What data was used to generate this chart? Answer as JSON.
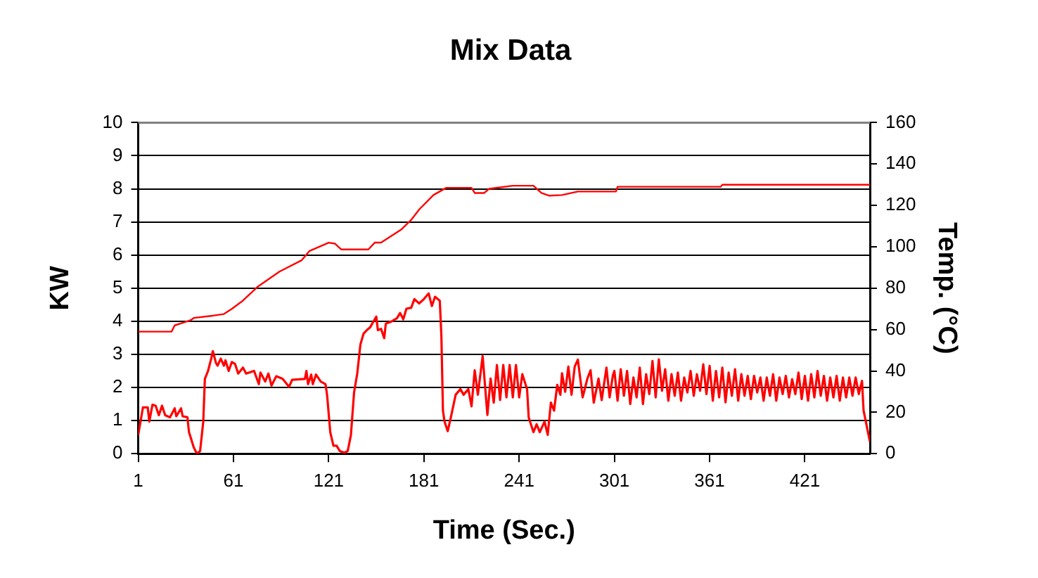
{
  "chart_data": {
    "type": "line",
    "title": "Mix Data",
    "xlabel": "Time (Sec.)",
    "ylabel": "KW",
    "y2label": "Temp. (°C)",
    "xlim": [
      1,
      462
    ],
    "xticks": [
      1,
      61,
      121,
      181,
      241,
      301,
      361,
      421
    ],
    "ylim": [
      0,
      10
    ],
    "yticks": [
      0,
      1,
      2,
      3,
      4,
      5,
      6,
      7,
      8,
      9,
      10
    ],
    "y2lim": [
      0,
      160
    ],
    "y2ticks": [
      0,
      20,
      40,
      60,
      80,
      100,
      120,
      140,
      160
    ],
    "grid": "y",
    "legend": false,
    "marker": "none",
    "line_style": "solid",
    "series": [
      {
        "color": "#ff0000",
        "axis": "y",
        "x": [
          1,
          4,
          7,
          8,
          10,
          12,
          14,
          16,
          18,
          21,
          24,
          25,
          28,
          29,
          32,
          33,
          36,
          38,
          40,
          42,
          43,
          45,
          47,
          48,
          50,
          51,
          53,
          55,
          56,
          58,
          60,
          62,
          64,
          67,
          69,
          74,
          77,
          78,
          81,
          83,
          85,
          88,
          92,
          96,
          98,
          106,
          107,
          108,
          110,
          111,
          113,
          116,
          119,
          120,
          122,
          124,
          126,
          128,
          131,
          133,
          135,
          137,
          139,
          141,
          143,
          145,
          147,
          151,
          152,
          154,
          156,
          157,
          160,
          164,
          166,
          168,
          170,
          173,
          175,
          178,
          181,
          184,
          186,
          188,
          191,
          192,
          193,
          194,
          196,
          198,
          201,
          204,
          206,
          209,
          211,
          213,
          215,
          218,
          221,
          223,
          225,
          227,
          229,
          231,
          233,
          235,
          237,
          239,
          241,
          243,
          246,
          247,
          250,
          252,
          254,
          257,
          259,
          261,
          263,
          265,
          267,
          268,
          270,
          272,
          274,
          276,
          278,
          281,
          284,
          286,
          288,
          291,
          293,
          296,
          298,
          300,
          301,
          303,
          305,
          307,
          309,
          311,
          313,
          315,
          317,
          319,
          321,
          323,
          325,
          327,
          329,
          331,
          333,
          335,
          337,
          339,
          341,
          343,
          345,
          347,
          349,
          351,
          353,
          355,
          357,
          359,
          361,
          363,
          365,
          367,
          369,
          371,
          373,
          375,
          377,
          379,
          381,
          383,
          385,
          387,
          389,
          391,
          393,
          395,
          397,
          399,
          401,
          403,
          405,
          407,
          409,
          411,
          413,
          415,
          417,
          419,
          421,
          423,
          425,
          427,
          429,
          431,
          433,
          435,
          437,
          439,
          441,
          443,
          445,
          447,
          449,
          451,
          453,
          455,
          457,
          458,
          462
        ],
        "values": [
          0.56,
          1.4,
          1.4,
          0.97,
          1.48,
          1.45,
          1.16,
          1.45,
          1.16,
          1.1,
          1.37,
          1.13,
          1.37,
          1.13,
          1.1,
          0.65,
          0.19,
          0,
          0.08,
          0.97,
          2.26,
          2.5,
          2.87,
          3.1,
          2.74,
          2.66,
          2.87,
          2.66,
          2.82,
          2.5,
          2.77,
          2.71,
          2.42,
          2.6,
          2.42,
          2.5,
          2.1,
          2.45,
          2.18,
          2.42,
          2.06,
          2.34,
          2.26,
          2.02,
          2.23,
          2.26,
          2.5,
          2.1,
          2.39,
          2.1,
          2.39,
          2.18,
          2.1,
          1.77,
          0.65,
          0.24,
          0.24,
          0.08,
          0.03,
          0.08,
          0.56,
          1.85,
          2.42,
          3.3,
          3.63,
          3.73,
          3.81,
          4.14,
          3.73,
          3.77,
          3.49,
          3.93,
          3.98,
          4.09,
          4.25,
          4.06,
          4.38,
          4.41,
          4.67,
          4.54,
          4.67,
          4.84,
          4.46,
          4.74,
          4.62,
          3.57,
          1.3,
          0.97,
          0.68,
          1.1,
          1.78,
          1.95,
          1.78,
          1.95,
          1.43,
          2.52,
          1.78,
          2.95,
          1.17,
          2.27,
          1.54,
          2.68,
          1.62,
          2.68,
          1.7,
          2.68,
          1.7,
          2.68,
          1.7,
          2.4,
          1.95,
          1.1,
          0.65,
          0.89,
          0.65,
          0.97,
          0.57,
          1.54,
          1.3,
          2.08,
          1.78,
          2.43,
          1.87,
          2.63,
          1.78,
          2.63,
          2.84,
          1.7,
          2.27,
          2.52,
          1.54,
          2.27,
          1.62,
          2.6,
          1.7,
          2.35,
          2.5,
          1.6,
          2.55,
          1.75,
          2.5,
          1.5,
          2.3,
          1.7,
          2.6,
          1.5,
          2.4,
          1.8,
          2.8,
          1.7,
          2.85,
          1.9,
          2.55,
          1.6,
          2.4,
          1.75,
          2.45,
          1.6,
          2.3,
          1.85,
          2.5,
          1.75,
          2.4,
          1.9,
          2.7,
          1.8,
          2.65,
          1.6,
          2.5,
          1.7,
          2.6,
          1.55,
          2.45,
          1.75,
          2.55,
          1.6,
          2.4,
          1.75,
          2.35,
          1.65,
          2.35,
          1.85,
          2.3,
          1.6,
          2.3,
          1.75,
          2.4,
          1.6,
          2.3,
          1.8,
          2.35,
          1.7,
          2.25,
          1.8,
          2.45,
          1.65,
          2.35,
          1.6,
          2.4,
          1.7,
          2.5,
          1.75,
          2.35,
          1.6,
          2.3,
          1.7,
          2.35,
          1.6,
          2.3,
          1.7,
          2.3,
          1.75,
          2.3,
          1.8,
          2.2,
          1.3,
          0.36
        ]
      },
      {
        "color": "#ff0000",
        "axis": "y2",
        "x": [
          1,
          22,
          24,
          34,
          36,
          48,
          55,
          60,
          67,
          76,
          90,
          104,
          109,
          121,
          125,
          129,
          146,
          150,
          154,
          160,
          167,
          173,
          178,
          187,
          195,
          211,
          213,
          219,
          222,
          237,
          250,
          255,
          260,
          268,
          278,
          302,
          303,
          368,
          369,
          462
        ],
        "values": [
          59,
          59,
          62,
          64.5,
          65.6,
          66.7,
          67.5,
          70,
          74,
          80.5,
          88,
          93.5,
          98,
          102,
          101.5,
          98.7,
          98.7,
          102,
          102,
          105,
          108.5,
          113,
          118,
          125,
          128.5,
          128.5,
          126,
          126,
          128,
          129.5,
          129.5,
          126,
          124.7,
          125,
          126.7,
          126.7,
          129,
          129,
          130,
          130
        ]
      }
    ]
  }
}
